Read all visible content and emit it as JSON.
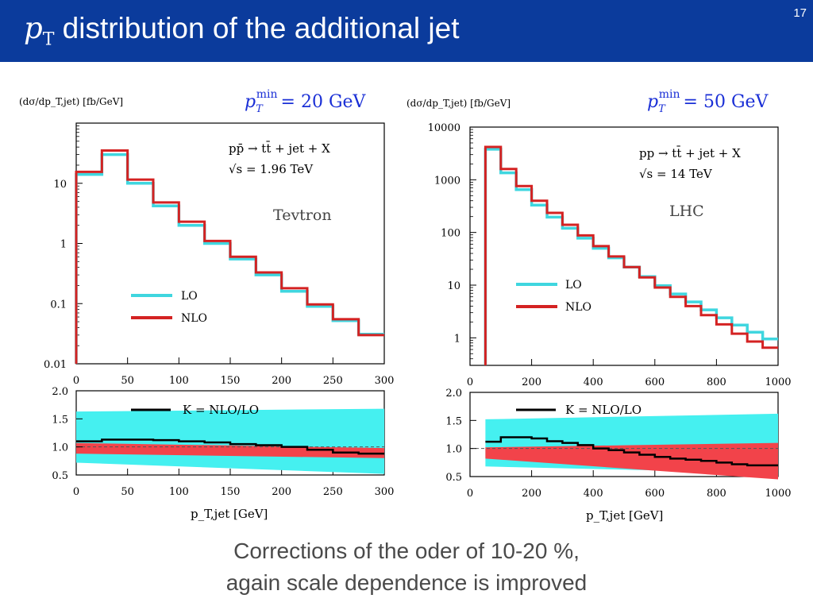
{
  "slide": {
    "title_math": "p",
    "title_math_sub": "T",
    "title_text": " distribution of the additional jet",
    "number": "17"
  },
  "caption": {
    "line1": "Corrections of the oder of 10-20 %,",
    "line2": "again scale dependence is improved"
  },
  "colors": {
    "header_bg": "#0b3b9c",
    "lo": "#3fd6df",
    "nlo": "#d42222",
    "band_lo": "#45f0f0",
    "band_nlo": "#f2434a",
    "k": "#000000"
  },
  "chart_data": [
    {
      "type": "line",
      "panel": "Tevtron",
      "ylabel": "(dσ/dp_T,jet) [fb/GeV]",
      "pt_min_label": "= 20 GeV",
      "process": "pp̄ → tt̄ + jet + X",
      "energy": "√s = 1.96 TeV",
      "collider_label": "Tevtron",
      "yscale": "log",
      "xlim": [
        0,
        300
      ],
      "ylim": [
        0.01,
        100
      ],
      "xticks": [
        "0",
        "50",
        "100",
        "150",
        "200",
        "250",
        "300"
      ],
      "yticks": [
        "0.01",
        "0.1",
        "1",
        "10"
      ],
      "yticks_values": [
        0.01,
        0.1,
        1,
        10
      ],
      "bin_edges": [
        0,
        25,
        50,
        75,
        100,
        125,
        150,
        175,
        200,
        225,
        250,
        275,
        300
      ],
      "series": [
        {
          "name": "LO",
          "values": [
            14,
            30,
            10,
            4.2,
            2.0,
            1.0,
            0.55,
            0.3,
            0.16,
            0.09,
            0.052,
            0.031
          ]
        },
        {
          "name": "NLO",
          "values": [
            15.5,
            35,
            11.5,
            4.8,
            2.3,
            1.1,
            0.6,
            0.33,
            0.18,
            0.097,
            0.055,
            0.03
          ]
        }
      ],
      "legend": [
        "LO",
        "NLO"
      ],
      "legend_position": "lower-left",
      "ratio": {
        "ylim": [
          0.5,
          2.0
        ],
        "yticks": [
          "0.5",
          "1.0",
          "1.5",
          "2.0"
        ],
        "yticks_values": [
          0.5,
          1.0,
          1.5,
          2.0
        ],
        "xlabel": "p_T,jet [GeV]",
        "k_label": "K = NLO/LO",
        "k_values": [
          1.1,
          1.13,
          1.13,
          1.12,
          1.1,
          1.08,
          1.05,
          1.03,
          1.0,
          0.95,
          0.9,
          0.88
        ],
        "lo_band": {
          "x": [
            0,
            300
          ],
          "upper": [
            1.63,
            1.68
          ],
          "lower": [
            0.72,
            0.52
          ]
        },
        "nlo_band": {
          "x": [
            0,
            300
          ],
          "upper": [
            1.07,
            0.98
          ],
          "lower": [
            0.88,
            0.8
          ]
        }
      }
    },
    {
      "type": "line",
      "panel": "LHC",
      "ylabel": "(dσ/dp_T,jet) [fb/GeV]",
      "pt_min_label": "= 50 GeV",
      "process": "pp → tt̄ + jet + X",
      "energy": "√s = 14 TeV",
      "collider_label": "LHC",
      "yscale": "log",
      "xlim": [
        0,
        1000
      ],
      "ylim": [
        0.3,
        10000
      ],
      "xticks": [
        "0",
        "200",
        "400",
        "600",
        "800",
        "1000"
      ],
      "yticks": [
        "1",
        "10",
        "100",
        "1000",
        "10000"
      ],
      "yticks_values": [
        1,
        10,
        100,
        1000,
        10000
      ],
      "bin_edges": [
        50,
        100,
        150,
        200,
        250,
        300,
        350,
        400,
        450,
        500,
        550,
        600,
        650,
        700,
        750,
        800,
        850,
        900,
        950,
        1000
      ],
      "series": [
        {
          "name": "LO",
          "values": [
            3800,
            1350,
            650,
            330,
            195,
            120,
            78,
            50,
            33,
            22,
            14.5,
            9.8,
            6.8,
            4.8,
            3.4,
            2.4,
            1.75,
            1.28,
            0.95
          ]
        },
        {
          "name": "NLO",
          "values": [
            4200,
            1600,
            760,
            400,
            235,
            140,
            88,
            55,
            35,
            22,
            14,
            9.0,
            6.0,
            4.0,
            2.7,
            1.8,
            1.2,
            0.85,
            0.65
          ]
        }
      ],
      "legend": [
        "LO",
        "NLO"
      ],
      "legend_position": "center-left",
      "ratio": {
        "ylim": [
          0.5,
          2.0
        ],
        "yticks": [
          "0.5",
          "1.0",
          "1.5",
          "2.0"
        ],
        "yticks_values": [
          0.5,
          1.0,
          1.5,
          2.0
        ],
        "xlabel": "p_T,jet [GeV]",
        "k_label": "K = NLO/LO",
        "k_values": [
          1.12,
          1.2,
          1.2,
          1.18,
          1.13,
          1.1,
          1.06,
          1.0,
          0.97,
          0.93,
          0.89,
          0.85,
          0.82,
          0.8,
          0.78,
          0.75,
          0.72,
          0.7,
          0.7
        ],
        "lo_band": {
          "x": [
            50,
            1000
          ],
          "upper": [
            1.52,
            1.62
          ],
          "lower": [
            0.68,
            0.56
          ]
        },
        "nlo_band": {
          "x": [
            50,
            1000
          ],
          "upper": [
            1.02,
            1.1
          ],
          "lower": [
            0.82,
            0.45
          ]
        }
      }
    }
  ]
}
